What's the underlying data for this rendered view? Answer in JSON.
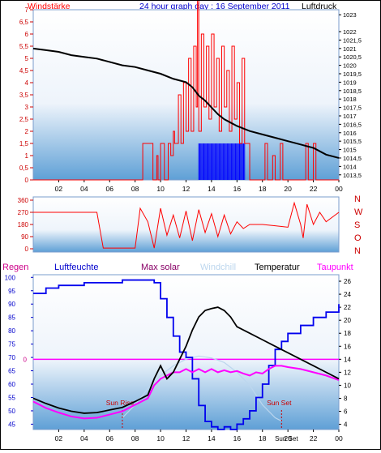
{
  "header": {
    "left": "Windstärke",
    "title": "24 hour graph day : 16 September 2011",
    "right": "Luftdruck"
  },
  "colors": {
    "wind": "#ff0000",
    "pressure": "#000000",
    "gust_fill": "#0000ff",
    "humidity": "#0000ee",
    "temperature": "#000000",
    "dewpoint": "#ff00ff",
    "windchill": "#bcd6ee",
    "rain_line": "#ff00ff",
    "sun": "#cc0000"
  },
  "chart_data": [
    {
      "type": "bar",
      "name": "wind-pressure",
      "y_left_ticks": [
        "0",
        "0,5",
        "1",
        "1,5",
        "2",
        "2,5",
        "3",
        "3,5",
        "4",
        "4,5",
        "5",
        "5,5",
        "6",
        "6,5",
        "7"
      ],
      "y_left_range": [
        0,
        7
      ],
      "y_right_ticks": [
        "1013,5",
        "1014",
        "1014,5",
        "1015",
        "1015,5",
        "1016",
        "1016,5",
        "1017",
        "1017,5",
        "1018",
        "1018,5",
        "1019",
        "1019,5",
        "1020",
        "1020,5",
        "1021",
        "1021,5",
        "1022",
        "1023"
      ],
      "y_right_range": [
        1013.2,
        1023.3
      ],
      "x_ticks": [
        "02",
        "04",
        "06",
        "08",
        "10",
        "12",
        "14",
        "16",
        "18",
        "20",
        "22",
        "00"
      ],
      "x_range": [
        0,
        24
      ],
      "pressure_series": [
        [
          0,
          1021.0
        ],
        [
          1,
          1020.9
        ],
        [
          2,
          1020.8
        ],
        [
          3,
          1020.6
        ],
        [
          4,
          1020.5
        ],
        [
          5,
          1020.4
        ],
        [
          6,
          1020.2
        ],
        [
          7,
          1020.0
        ],
        [
          8,
          1019.9
        ],
        [
          9,
          1019.7
        ],
        [
          10,
          1019.5
        ],
        [
          11,
          1019.2
        ],
        [
          12,
          1019.0
        ],
        [
          12.5,
          1018.7
        ],
        [
          13,
          1018.2
        ],
        [
          13.5,
          1017.9
        ],
        [
          14,
          1017.5
        ],
        [
          14.5,
          1017.1
        ],
        [
          15,
          1016.8
        ],
        [
          15.5,
          1016.6
        ],
        [
          16,
          1016.4
        ],
        [
          17,
          1016.1
        ],
        [
          18,
          1015.9
        ],
        [
          19,
          1015.7
        ],
        [
          20,
          1015.5
        ],
        [
          21,
          1015.3
        ],
        [
          22,
          1015.1
        ],
        [
          23,
          1014.7
        ],
        [
          24,
          1014.5
        ]
      ],
      "wind_series": [
        [
          0,
          0
        ],
        [
          8.5,
          0
        ],
        [
          8.6,
          1.5
        ],
        [
          9.3,
          1.5
        ],
        [
          9.4,
          0
        ],
        [
          9.7,
          1
        ],
        [
          9.8,
          0
        ],
        [
          10,
          1.5
        ],
        [
          10.3,
          0
        ],
        [
          10.6,
          1.5
        ],
        [
          10.8,
          1
        ],
        [
          11,
          2
        ],
        [
          11.1,
          1.5
        ],
        [
          11.4,
          3.5
        ],
        [
          11.6,
          1.5
        ],
        [
          11.8,
          4
        ],
        [
          12,
          2
        ],
        [
          12.2,
          5
        ],
        [
          12.4,
          2
        ],
        [
          12.6,
          5.5
        ],
        [
          12.8,
          3
        ],
        [
          12.9,
          7.5
        ],
        [
          13,
          2
        ],
        [
          13.2,
          6
        ],
        [
          13.4,
          3
        ],
        [
          13.6,
          5.5
        ],
        [
          13.8,
          2.5
        ],
        [
          14,
          6
        ],
        [
          14.2,
          3
        ],
        [
          14.4,
          5
        ],
        [
          14.6,
          2
        ],
        [
          14.8,
          5.5
        ],
        [
          15,
          3
        ],
        [
          15.2,
          4.5
        ],
        [
          15.4,
          2
        ],
        [
          15.6,
          5.5
        ],
        [
          15.8,
          2.5
        ],
        [
          16,
          4
        ],
        [
          16.2,
          1.5
        ],
        [
          16.4,
          5
        ],
        [
          16.6,
          1.5
        ],
        [
          16.8,
          1.5
        ],
        [
          17,
          0
        ],
        [
          18,
          0
        ],
        [
          18.2,
          1.5
        ],
        [
          18.4,
          0
        ],
        [
          18.8,
          1
        ],
        [
          19,
          0
        ],
        [
          19.4,
          1.5
        ],
        [
          19.6,
          0
        ],
        [
          20,
          0
        ],
        [
          21.2,
          0
        ],
        [
          21.4,
          1.5
        ],
        [
          21.6,
          0
        ],
        [
          22,
          1.5
        ],
        [
          22.2,
          0
        ],
        [
          24,
          0
        ]
      ],
      "gust_band": [
        13.0,
        16.6
      ],
      "gust_level": 1.5
    },
    {
      "type": "line",
      "name": "wind-direction",
      "y_left_ticks": [
        "0",
        "90",
        "180",
        "270",
        "360"
      ],
      "y_range": [
        0,
        360
      ],
      "y_right_labels": [
        "N",
        "W",
        "S",
        "O",
        "N"
      ],
      "direction_series": [
        [
          0,
          270
        ],
        [
          1,
          270
        ],
        [
          2,
          270
        ],
        [
          3,
          270
        ],
        [
          4,
          270
        ],
        [
          5,
          270
        ],
        [
          5.5,
          5
        ],
        [
          6,
          5
        ],
        [
          7,
          5
        ],
        [
          8,
          5
        ],
        [
          8.4,
          300
        ],
        [
          9,
          200
        ],
        [
          9.5,
          5
        ],
        [
          10,
          300
        ],
        [
          10.5,
          100
        ],
        [
          11,
          250
        ],
        [
          11.5,
          80
        ],
        [
          12,
          280
        ],
        [
          12.5,
          60
        ],
        [
          13,
          290
        ],
        [
          13.5,
          120
        ],
        [
          14,
          260
        ],
        [
          14.5,
          90
        ],
        [
          15,
          250
        ],
        [
          15.5,
          110
        ],
        [
          16,
          200
        ],
        [
          16.5,
          150
        ],
        [
          17,
          180
        ],
        [
          18,
          180
        ],
        [
          19,
          170
        ],
        [
          20,
          160
        ],
        [
          20.5,
          340
        ],
        [
          21,
          180
        ],
        [
          21.2,
          80
        ],
        [
          21.5,
          330
        ],
        [
          22,
          180
        ],
        [
          22.5,
          270
        ],
        [
          23,
          200
        ],
        [
          24,
          270
        ]
      ]
    },
    {
      "type": "line",
      "name": "weather",
      "legend": [
        "Regen",
        "Luftfeuchte",
        "Max solar",
        "Windchill",
        "Temperatur",
        "Taupunkt"
      ],
      "y_left_ticks": [
        "45",
        "50",
        "55",
        "60",
        "65",
        "70",
        "75",
        "80",
        "85",
        "90",
        "95",
        "100"
      ],
      "y_left_range": [
        43,
        101
      ],
      "y_right_ticks": [
        "4",
        "6",
        "8",
        "10",
        "12",
        "14",
        "16",
        "18",
        "20",
        "22",
        "24",
        "26"
      ],
      "y_right_range": [
        3.2,
        27
      ],
      "x_ticks": [
        "02",
        "04",
        "06",
        "08",
        "10",
        "12",
        "14",
        "16",
        "18",
        "20",
        "22",
        "00"
      ],
      "x_range": [
        0,
        24
      ],
      "rain_zero_label": "0",
      "rain_zero_value": 14,
      "sunrise_label": "Sun Rise",
      "sunrise_hour": 7.0,
      "sunset_label": "Sun Set",
      "sunset_hour": 19.5,
      "x_extra_label": "Sun Set",
      "humidity": [
        [
          0,
          94
        ],
        [
          1,
          96
        ],
        [
          2,
          97
        ],
        [
          3,
          97
        ],
        [
          4,
          98
        ],
        [
          5,
          98
        ],
        [
          6,
          98
        ],
        [
          7,
          99
        ],
        [
          8,
          99
        ],
        [
          9,
          99
        ],
        [
          9.5,
          98
        ],
        [
          10,
          92
        ],
        [
          10.5,
          85
        ],
        [
          11,
          78
        ],
        [
          11.5,
          72
        ],
        [
          12,
          70
        ],
        [
          12.5,
          62
        ],
        [
          13,
          52
        ],
        [
          13.5,
          46
        ],
        [
          14,
          44
        ],
        [
          14.5,
          43
        ],
        [
          15,
          44
        ],
        [
          15.5,
          43
        ],
        [
          16,
          45
        ],
        [
          16.5,
          47
        ],
        [
          17,
          50
        ],
        [
          17.5,
          55
        ],
        [
          18,
          60
        ],
        [
          18.5,
          67
        ],
        [
          19,
          73
        ],
        [
          19.5,
          76
        ],
        [
          20,
          79
        ],
        [
          21,
          82
        ],
        [
          22,
          85
        ],
        [
          23,
          87
        ],
        [
          24,
          90
        ]
      ],
      "temperature": [
        [
          0,
          8
        ],
        [
          1,
          7.2
        ],
        [
          2,
          6.5
        ],
        [
          3,
          6
        ],
        [
          4,
          5.7
        ],
        [
          5,
          5.8
        ],
        [
          6,
          6.2
        ],
        [
          7,
          6.6
        ],
        [
          8,
          7.5
        ],
        [
          9,
          8.5
        ],
        [
          9.5,
          11
        ],
        [
          10,
          13
        ],
        [
          10.5,
          11
        ],
        [
          11,
          12
        ],
        [
          11.5,
          14
        ],
        [
          12,
          16
        ],
        [
          12.5,
          18.5
        ],
        [
          13,
          20.5
        ],
        [
          13.5,
          21.5
        ],
        [
          14,
          21.8
        ],
        [
          14.5,
          22
        ],
        [
          15,
          21.5
        ],
        [
          15.5,
          20.5
        ],
        [
          16,
          19
        ],
        [
          17,
          18
        ],
        [
          18,
          17
        ],
        [
          19,
          16
        ],
        [
          20,
          15
        ],
        [
          21,
          14
        ],
        [
          22,
          13
        ],
        [
          23,
          12
        ],
        [
          24,
          11
        ]
      ],
      "dewpoint": [
        [
          0,
          7.5
        ],
        [
          1,
          6.5
        ],
        [
          2,
          5.8
        ],
        [
          3,
          5.2
        ],
        [
          4,
          4.9
        ],
        [
          5,
          5
        ],
        [
          6,
          5.5
        ],
        [
          7,
          6
        ],
        [
          8,
          7
        ],
        [
          9,
          8
        ],
        [
          9.5,
          10
        ],
        [
          10,
          11
        ],
        [
          10.5,
          11.5
        ],
        [
          11,
          12
        ],
        [
          11.5,
          12
        ],
        [
          12,
          12.5
        ],
        [
          12.5,
          12
        ],
        [
          13,
          12.5
        ],
        [
          13.5,
          12
        ],
        [
          14,
          12.5
        ],
        [
          14.5,
          12
        ],
        [
          15,
          12.3
        ],
        [
          15.5,
          12
        ],
        [
          16,
          12.2
        ],
        [
          16.5,
          11.8
        ],
        [
          17,
          11.5
        ],
        [
          17.5,
          12
        ],
        [
          18,
          11.8
        ],
        [
          18.5,
          12.5
        ],
        [
          19,
          13
        ],
        [
          19.5,
          13
        ],
        [
          20,
          12.8
        ],
        [
          21,
          12.5
        ],
        [
          22,
          12
        ],
        [
          23,
          11.5
        ],
        [
          24,
          10.8
        ]
      ],
      "max_solar": [
        [
          7,
          5
        ],
        [
          8,
          7
        ],
        [
          9,
          9.5
        ],
        [
          10,
          11.5
        ],
        [
          11,
          13
        ],
        [
          12,
          14
        ],
        [
          13,
          14.5
        ],
        [
          14,
          14.2
        ],
        [
          15,
          13.5
        ],
        [
          16,
          12
        ],
        [
          17,
          10
        ],
        [
          18,
          7
        ],
        [
          19,
          5
        ],
        [
          19.5,
          4.5
        ]
      ]
    }
  ]
}
